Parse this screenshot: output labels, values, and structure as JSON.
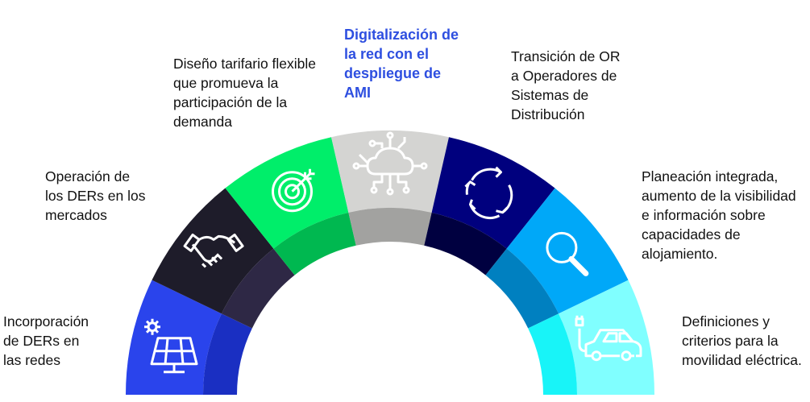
{
  "segments": [
    {
      "label": "Incorporación de DERs en las redes",
      "icon": "solar-panel-icon",
      "outer": "#2a44ec",
      "inner": "#1a2fc2"
    },
    {
      "label": "Operación de los DERs en los mercados",
      "icon": "handshake-icon",
      "outer": "#1e1c2a",
      "inner": "#2e2845"
    },
    {
      "label": "Diseño tarifario flexible que promueva la participación de la demanda",
      "icon": "target-icon",
      "outer": "#00ee6a",
      "inner": "#00b850"
    },
    {
      "label": "Digitalización de la red con el despliegue de AMI",
      "icon": "cloud-network-icon",
      "outer": "#d4d4d2",
      "inner": "#a2a2a0",
      "highlight": true
    },
    {
      "label": "Transición de OR a Operadores de Sistemas de Distribución",
      "icon": "refresh-cycle-icon",
      "outer": "#00007e",
      "inner": "#000040"
    },
    {
      "label": "Planeación integrada, aumento de la visibilidad e información sobre capacidades de alojamiento.",
      "icon": "magnifier-icon",
      "outer": "#00a8f8",
      "inner": "#0080c0"
    },
    {
      "label": "Definiciones y criterios para la movilidad eléctrica.",
      "icon": "electric-car-icon",
      "outer": "#80ffff",
      "inner": "#18f4f8"
    }
  ]
}
